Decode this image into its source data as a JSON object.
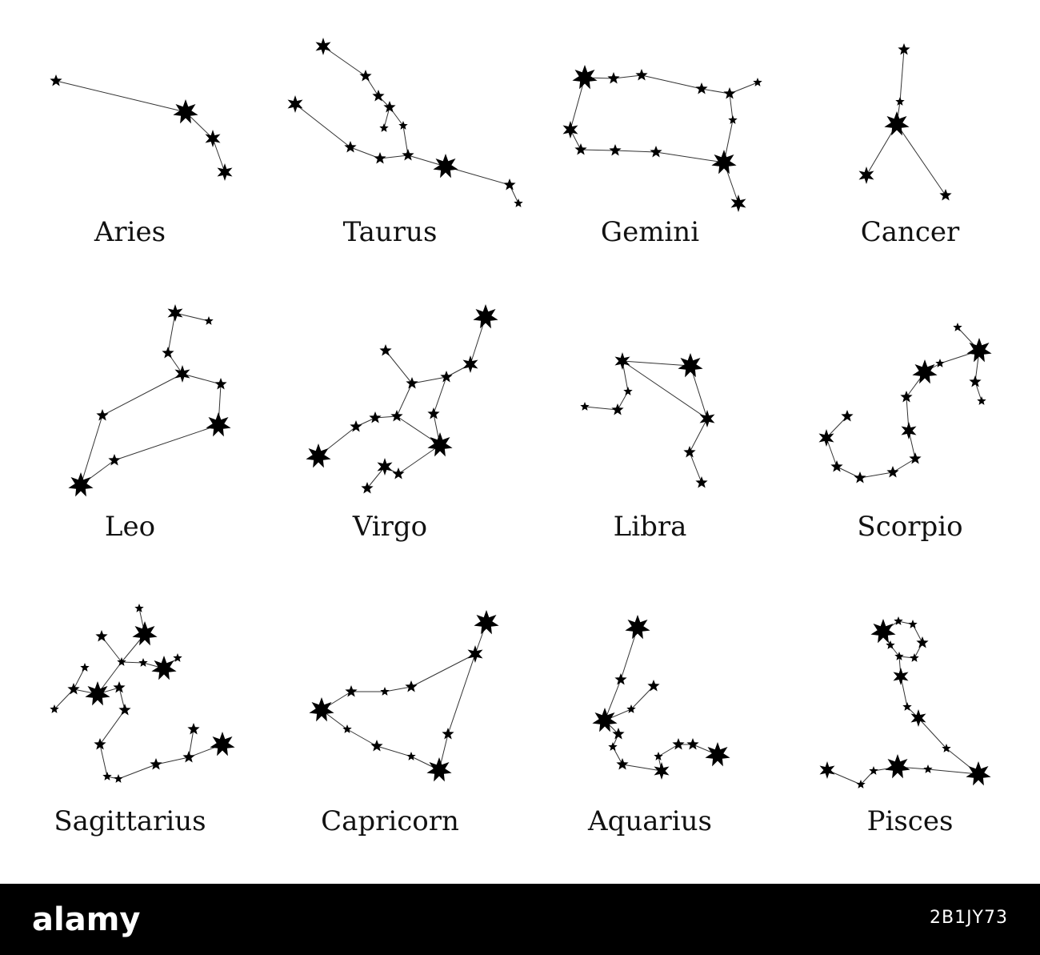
{
  "colors": {
    "ink": "#000000",
    "line": "#333333",
    "background": "#ffffff",
    "footer": "#000000",
    "footer_text": "#ffffff"
  },
  "constellations": [
    {
      "name": "Aries",
      "stars": [
        [
          70,
          101,
          "s"
        ],
        [
          232,
          140,
          "l"
        ],
        [
          266,
          173,
          "m"
        ],
        [
          281,
          215,
          "m"
        ]
      ],
      "lines": [
        [
          0,
          1
        ],
        [
          1,
          2
        ],
        [
          2,
          3
        ]
      ]
    },
    {
      "name": "Taurus",
      "stars": [
        [
          404,
          58,
          "m"
        ],
        [
          457,
          95,
          "s"
        ],
        [
          473,
          120,
          "s"
        ],
        [
          487,
          134,
          "s"
        ],
        [
          480,
          160,
          "t"
        ],
        [
          504,
          157,
          "t"
        ],
        [
          510,
          194,
          "s"
        ],
        [
          475,
          198,
          "s"
        ],
        [
          438,
          184,
          "s"
        ],
        [
          369,
          130,
          "m"
        ],
        [
          557,
          208,
          "l"
        ],
        [
          637,
          231,
          "s"
        ],
        [
          648,
          254,
          "t"
        ]
      ],
      "lines": [
        [
          0,
          1
        ],
        [
          1,
          2
        ],
        [
          2,
          3
        ],
        [
          3,
          4
        ],
        [
          3,
          5
        ],
        [
          5,
          6
        ],
        [
          9,
          8
        ],
        [
          8,
          7
        ],
        [
          7,
          6
        ],
        [
          6,
          10
        ],
        [
          10,
          11
        ],
        [
          11,
          12
        ]
      ]
    },
    {
      "name": "Gemini",
      "stars": [
        [
          731,
          97,
          "l"
        ],
        [
          767,
          98,
          "s"
        ],
        [
          802,
          94,
          "s"
        ],
        [
          877,
          111,
          "s"
        ],
        [
          912,
          117,
          "s"
        ],
        [
          947,
          103,
          "t"
        ],
        [
          916,
          150,
          "t"
        ],
        [
          905,
          203,
          "l"
        ],
        [
          923,
          254,
          "m"
        ],
        [
          820,
          190,
          "s"
        ],
        [
          769,
          188,
          "s"
        ],
        [
          726,
          187,
          "s"
        ],
        [
          713,
          162,
          "m"
        ]
      ],
      "lines": [
        [
          0,
          1
        ],
        [
          1,
          2
        ],
        [
          2,
          3
        ],
        [
          3,
          4
        ],
        [
          4,
          5
        ],
        [
          4,
          6
        ],
        [
          6,
          7
        ],
        [
          7,
          8
        ],
        [
          7,
          9
        ],
        [
          9,
          10
        ],
        [
          10,
          11
        ],
        [
          11,
          12
        ],
        [
          12,
          0
        ]
      ]
    },
    {
      "name": "Cancer",
      "stars": [
        [
          1130,
          62,
          "s"
        ],
        [
          1125,
          127,
          "t"
        ],
        [
          1121,
          155,
          "l"
        ],
        [
          1083,
          219,
          "m"
        ],
        [
          1182,
          244,
          "s"
        ]
      ],
      "lines": [
        [
          0,
          1
        ],
        [
          1,
          2
        ],
        [
          2,
          3
        ],
        [
          2,
          4
        ]
      ]
    },
    {
      "name": "Leo",
      "stars": [
        [
          219,
          391,
          "m"
        ],
        [
          261,
          401,
          "t"
        ],
        [
          210,
          441,
          "s"
        ],
        [
          228,
          467,
          "m"
        ],
        [
          276,
          480,
          "s"
        ],
        [
          273,
          531,
          "l"
        ],
        [
          143,
          575,
          "s"
        ],
        [
          101,
          606,
          "l"
        ],
        [
          128,
          519,
          "s"
        ]
      ],
      "lines": [
        [
          1,
          0
        ],
        [
          0,
          2
        ],
        [
          2,
          3
        ],
        [
          3,
          4
        ],
        [
          4,
          5
        ],
        [
          5,
          6
        ],
        [
          6,
          7
        ],
        [
          7,
          8
        ],
        [
          8,
          3
        ]
      ]
    },
    {
      "name": "Virgo",
      "stars": [
        [
          607,
          396,
          "l"
        ],
        [
          588,
          455,
          "m"
        ],
        [
          558,
          471,
          "s"
        ],
        [
          515,
          479,
          "s"
        ],
        [
          482,
          438,
          "s"
        ],
        [
          496,
          520,
          "s"
        ],
        [
          469,
          522,
          "s"
        ],
        [
          445,
          533,
          "s"
        ],
        [
          398,
          570,
          "l"
        ],
        [
          542,
          517,
          "s"
        ],
        [
          550,
          556,
          "l"
        ],
        [
          498,
          592,
          "s"
        ],
        [
          481,
          583,
          "m"
        ],
        [
          459,
          610,
          "s"
        ]
      ],
      "lines": [
        [
          0,
          1
        ],
        [
          1,
          2
        ],
        [
          2,
          3
        ],
        [
          3,
          4
        ],
        [
          3,
          5
        ],
        [
          5,
          6
        ],
        [
          6,
          7
        ],
        [
          7,
          8
        ],
        [
          2,
          9
        ],
        [
          9,
          10
        ],
        [
          5,
          10
        ],
        [
          10,
          11
        ],
        [
          11,
          12
        ],
        [
          12,
          13
        ]
      ]
    },
    {
      "name": "Libra",
      "stars": [
        [
          778,
          451,
          "m"
        ],
        [
          863,
          457,
          "l"
        ],
        [
          884,
          523,
          "m"
        ],
        [
          862,
          565,
          "s"
        ],
        [
          877,
          603,
          "s"
        ],
        [
          785,
          489,
          "t"
        ],
        [
          772,
          512,
          "s"
        ],
        [
          731,
          508,
          "t"
        ]
      ],
      "lines": [
        [
          0,
          1
        ],
        [
          1,
          2
        ],
        [
          0,
          2
        ],
        [
          2,
          3
        ],
        [
          3,
          4
        ],
        [
          0,
          5
        ],
        [
          5,
          6
        ],
        [
          6,
          7
        ]
      ]
    },
    {
      "name": "Scorpio",
      "stars": [
        [
          1197,
          409,
          "t"
        ],
        [
          1224,
          438,
          "l"
        ],
        [
          1219,
          477,
          "s"
        ],
        [
          1227,
          501,
          "t"
        ],
        [
          1175,
          454,
          "t"
        ],
        [
          1156,
          465,
          "l"
        ],
        [
          1133,
          496,
          "s"
        ],
        [
          1136,
          538,
          "m"
        ],
        [
          1144,
          573,
          "s"
        ],
        [
          1116,
          590,
          "s"
        ],
        [
          1075,
          597,
          "s"
        ],
        [
          1046,
          583,
          "s"
        ],
        [
          1033,
          547,
          "m"
        ],
        [
          1059,
          520,
          "s"
        ]
      ],
      "lines": [
        [
          0,
          1
        ],
        [
          1,
          2
        ],
        [
          2,
          3
        ],
        [
          1,
          4
        ],
        [
          4,
          5
        ],
        [
          5,
          6
        ],
        [
          6,
          7
        ],
        [
          7,
          8
        ],
        [
          8,
          9
        ],
        [
          9,
          10
        ],
        [
          10,
          11
        ],
        [
          11,
          12
        ],
        [
          12,
          13
        ]
      ]
    },
    {
      "name": "Sagittarius",
      "stars": [
        [
          174,
          760,
          "t"
        ],
        [
          181,
          792,
          "l"
        ],
        [
          127,
          795,
          "s"
        ],
        [
          152,
          827,
          "t"
        ],
        [
          179,
          828,
          "t"
        ],
        [
          205,
          835,
          "l"
        ],
        [
          222,
          822,
          "t"
        ],
        [
          106,
          834,
          "t"
        ],
        [
          92,
          861,
          "s"
        ],
        [
          68,
          886,
          "t"
        ],
        [
          122,
          867,
          "l"
        ],
        [
          149,
          859,
          "s"
        ],
        [
          156,
          887,
          "s"
        ],
        [
          125,
          930,
          "s"
        ],
        [
          134,
          970,
          "t"
        ],
        [
          148,
          973,
          "t"
        ],
        [
          195,
          955,
          "s"
        ],
        [
          236,
          946,
          "s"
        ],
        [
          242,
          911,
          "s"
        ],
        [
          278,
          930,
          "l"
        ]
      ],
      "lines": [
        [
          0,
          1
        ],
        [
          1,
          3
        ],
        [
          2,
          3
        ],
        [
          3,
          4
        ],
        [
          4,
          5
        ],
        [
          5,
          6
        ],
        [
          7,
          8
        ],
        [
          8,
          9
        ],
        [
          8,
          10
        ],
        [
          10,
          3
        ],
        [
          10,
          11
        ],
        [
          11,
          12
        ],
        [
          12,
          13
        ],
        [
          13,
          14
        ],
        [
          14,
          15
        ],
        [
          15,
          16
        ],
        [
          16,
          17
        ],
        [
          17,
          18
        ],
        [
          17,
          19
        ]
      ]
    },
    {
      "name": "Capricorn",
      "stars": [
        [
          608,
          778,
          "l"
        ],
        [
          594,
          817,
          "m"
        ],
        [
          514,
          858,
          "s"
        ],
        [
          481,
          864,
          "t"
        ],
        [
          439,
          864,
          "s"
        ],
        [
          402,
          887,
          "l"
        ],
        [
          434,
          911,
          "t"
        ],
        [
          471,
          932,
          "s"
        ],
        [
          514,
          945,
          "t"
        ],
        [
          549,
          962,
          "l"
        ],
        [
          560,
          917,
          "s"
        ]
      ],
      "lines": [
        [
          0,
          1
        ],
        [
          1,
          2
        ],
        [
          2,
          3
        ],
        [
          3,
          4
        ],
        [
          4,
          5
        ],
        [
          5,
          6
        ],
        [
          6,
          7
        ],
        [
          7,
          8
        ],
        [
          8,
          9
        ],
        [
          9,
          10
        ],
        [
          10,
          1
        ]
      ]
    },
    {
      "name": "Aquarius",
      "stars": [
        [
          797,
          784,
          "l"
        ],
        [
          776,
          849,
          "s"
        ],
        [
          817,
          857,
          "s"
        ],
        [
          789,
          886,
          "t"
        ],
        [
          756,
          900,
          "l"
        ],
        [
          773,
          917,
          "s"
        ],
        [
          766,
          933,
          "t"
        ],
        [
          778,
          955,
          "s"
        ],
        [
          827,
          963,
          "m"
        ],
        [
          823,
          945,
          "t"
        ],
        [
          848,
          930,
          "s"
        ],
        [
          866,
          930,
          "s"
        ],
        [
          897,
          943,
          "l"
        ]
      ],
      "lines": [
        [
          0,
          1
        ],
        [
          1,
          4
        ],
        [
          2,
          3
        ],
        [
          3,
          4
        ],
        [
          4,
          5
        ],
        [
          5,
          6
        ],
        [
          6,
          7
        ],
        [
          7,
          8
        ],
        [
          8,
          9
        ],
        [
          9,
          10
        ],
        [
          10,
          11
        ],
        [
          11,
          12
        ]
      ]
    },
    {
      "name": "Pisces",
      "stars": [
        [
          1104,
          789,
          "l"
        ],
        [
          1123,
          776,
          "t"
        ],
        [
          1141,
          780,
          "t"
        ],
        [
          1153,
          803,
          "s"
        ],
        [
          1143,
          822,
          "t"
        ],
        [
          1124,
          820,
          "t"
        ],
        [
          1113,
          806,
          "t"
        ],
        [
          1126,
          845,
          "m"
        ],
        [
          1134,
          883,
          "t"
        ],
        [
          1148,
          897,
          "m"
        ],
        [
          1183,
          935,
          "t"
        ],
        [
          1223,
          967,
          "l"
        ],
        [
          1160,
          961,
          "t"
        ],
        [
          1122,
          958,
          "l"
        ],
        [
          1092,
          963,
          "t"
        ],
        [
          1076,
          980,
          "t"
        ],
        [
          1034,
          962,
          "m"
        ]
      ],
      "lines": [
        [
          0,
          1
        ],
        [
          1,
          2
        ],
        [
          2,
          3
        ],
        [
          3,
          4
        ],
        [
          4,
          5
        ],
        [
          5,
          6
        ],
        [
          6,
          0
        ],
        [
          5,
          7
        ],
        [
          7,
          8
        ],
        [
          8,
          9
        ],
        [
          9,
          10
        ],
        [
          10,
          11
        ],
        [
          11,
          12
        ],
        [
          12,
          13
        ],
        [
          13,
          14
        ],
        [
          14,
          15
        ],
        [
          15,
          16
        ]
      ]
    }
  ],
  "footer": {
    "logo": "alamy",
    "image_id": "2B1JY73"
  }
}
